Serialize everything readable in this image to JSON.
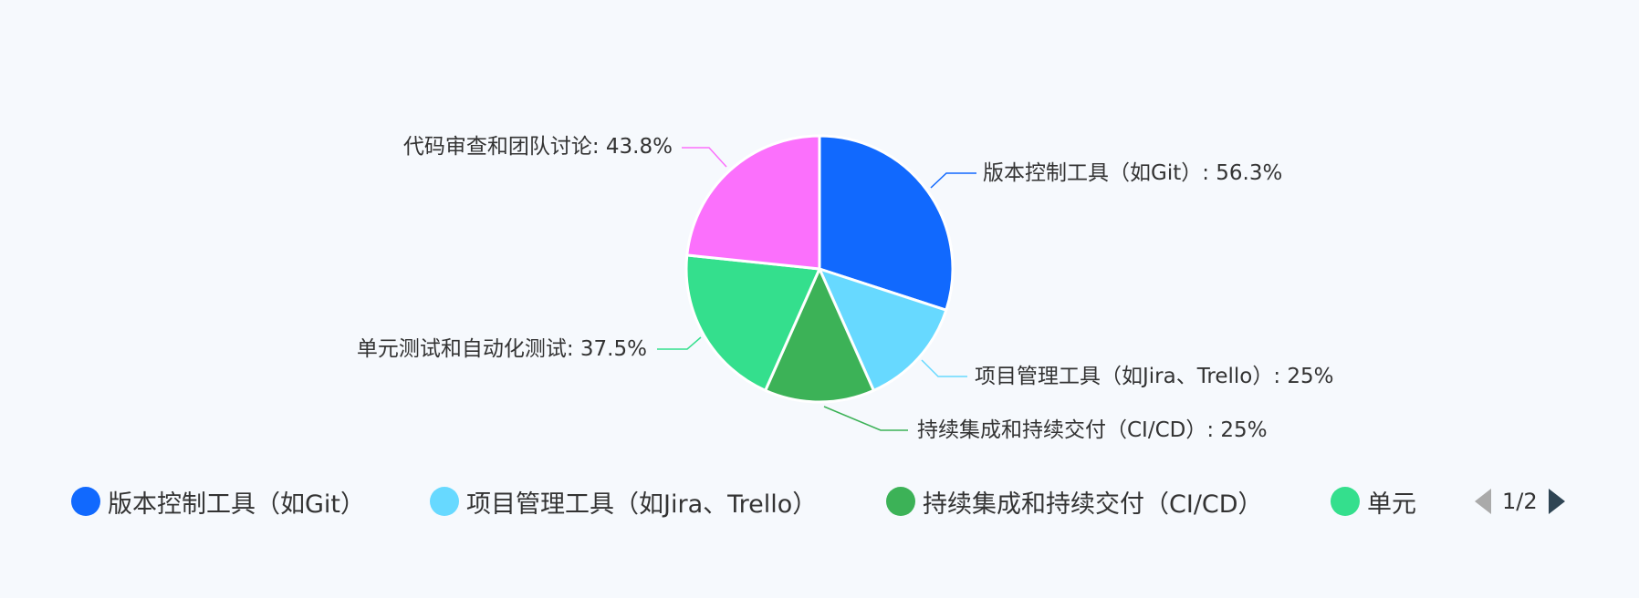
{
  "chart_data": {
    "type": "pie",
    "slices": [
      {
        "label": "版本控制工具（如Git）",
        "value": 56.3,
        "value_text": "56.3%",
        "color": "#1169fe"
      },
      {
        "label": "项目管理工具（如Jira、Trello）",
        "value": 25,
        "value_text": "25%",
        "color": "#67d9ff"
      },
      {
        "label": "持续集成和持续交付（CI/CD）",
        "value": 25,
        "value_text": "25%",
        "color": "#3cb257"
      },
      {
        "label": "单元测试和自动化测试",
        "value": 37.5,
        "value_text": "37.5%",
        "color": "#34df8d"
      },
      {
        "label": "代码审查和团队讨论",
        "value": 43.8,
        "value_text": "43.8%",
        "color": "#fb70fc"
      }
    ],
    "callout_labels": [
      "版本控制工具（如Git）: 56.3%",
      "项目管理工具（如Jira、Trello）: 25%",
      "持续集成和持续交付（CI/CD）: 25%",
      "单元测试和自动化测试: 37.5%",
      "代码审查和团队讨论: 43.8%"
    ],
    "legend": {
      "placement": "bottom",
      "visible_items": [
        "版本控制工具（如Git）",
        "项目管理工具（如Jira、Trello）",
        "持续集成和持续交付（CI/CD）",
        "单元"
      ],
      "page_indicator": "1/2"
    }
  }
}
